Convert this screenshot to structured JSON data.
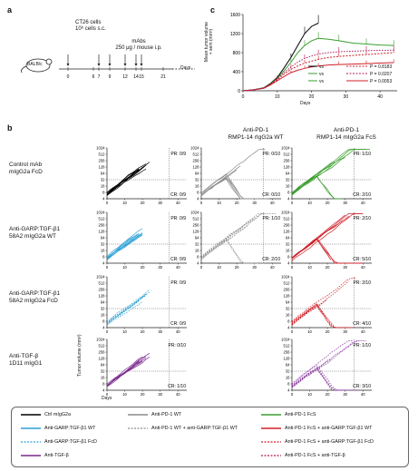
{
  "panel_a": {
    "label": "a",
    "cells_line1": "CT26 cells",
    "cells_line2": "10⁶ cells s.c.",
    "mabs_line1": "mAbs",
    "mabs_line2": "250 μg / mouse i.p.",
    "mouse": "BALB/c",
    "timeline_ticks": [
      "0",
      "6",
      "7",
      "9",
      "12",
      "14",
      "15",
      "21"
    ],
    "timeline_unit": "Days"
  },
  "panel_c": {
    "label": "c",
    "ylabel_line1": "Mean tumor volume",
    "ylabel_line2": "+ sem (mm³)",
    "xlabel": "Days",
    "vs": [
      "vs",
      "vs",
      "vs"
    ],
    "pvalues": [
      "P = 0.8183",
      "P = 0.0207",
      "P = 0.0053"
    ],
    "colors": {
      "black": "#000000",
      "green": "#3a9d2e",
      "red": "#d0202a",
      "darkred": "#b0102a"
    }
  },
  "panel_b": {
    "label": "b",
    "col_headers": [
      {
        "line1": "",
        "line2": ""
      },
      {
        "line1": "Anti-PD-1",
        "line2": "RMP1-14 rIgG2a WT"
      },
      {
        "line1": "Anti-PD-1",
        "line2": "RMP1-14 mIgG2a FcS"
      }
    ],
    "row_labels": [
      {
        "line1": "Control mAb",
        "line2": "mIgG2a FcD",
        "line3": ""
      },
      {
        "line1": "Anti-GARP:TGF-β1",
        "line2": "58A2 mIgG2a WT",
        "line3": ""
      },
      {
        "line1": "Anti-GARP:TGF-β1",
        "line2": "58A2 mIgG2a FcD",
        "line3": ""
      },
      {
        "line1": "Anti-TGF-β",
        "line2": "1D11 mIgG1",
        "line3": ""
      }
    ],
    "yticks": [
      "1024",
      "512",
      "256",
      "128",
      "64",
      "32",
      "16",
      "8",
      "4"
    ],
    "xticks": [
      "0",
      "10",
      "20",
      "30",
      "40"
    ],
    "yaxis_label": "Tumor volume (mm³)",
    "xaxis_label": "Days",
    "cells": [
      [
        {
          "pr": "PR: 0/9",
          "cr": "CR: 0/9"
        },
        {
          "pr": "PR: 0/10",
          "cr": "CR: 0/10"
        },
        {
          "pr": "PR: 1/10",
          "cr": "CR: 2/10"
        }
      ],
      [
        {
          "pr": "PR: 0/9",
          "cr": "CR: 0/9"
        },
        {
          "pr": "PR: 1/10",
          "cr": "CR: 2/10"
        },
        {
          "pr": "PR: 2/10",
          "cr": "CR: 5/10"
        }
      ],
      [
        {
          "pr": "PR: 0/9",
          "cr": "CR: 0/9"
        },
        {
          "pr": "",
          "cr": ""
        },
        {
          "pr": "PR: 2/10",
          "cr": "CR: 4/10"
        }
      ],
      [
        {
          "pr": "PR: 0/10",
          "cr": "CR: 1/10"
        },
        {
          "pr": "",
          "cr": ""
        },
        {
          "pr": "PR: 1/10",
          "cr": "CR: 3/10"
        }
      ]
    ]
  },
  "legend": {
    "items": [
      {
        "label": "Ctrl mIgG2a",
        "color": "#000000",
        "dash": false
      },
      {
        "label": "Anti-GARP:TGF-β1 WT",
        "color": "#2a9fd6",
        "dash": false
      },
      {
        "label": "Anti-GARP:TGF-β1 FcD",
        "color": "#2a9fd6",
        "dash": true
      },
      {
        "label": "Anti-TGF-β",
        "color": "#7b2a8e",
        "dash": false
      },
      {
        "label": "Anti-PD-1 WT",
        "color": "#8c8c8c",
        "dash": false
      },
      {
        "label": "Anti-PD-1 WT + anti-GARP:TGF-β1 WT",
        "color": "#8c8c8c",
        "dash": true
      },
      {
        "label": "Anti-PD-1 FcS",
        "color": "#3a9d2e",
        "dash": false
      },
      {
        "label": "Anti-PD-1 FcS + anti-GARP:TGF-β1 WT",
        "color": "#d0202a",
        "dash": false
      },
      {
        "label": "Anti-PD-1 FcS + anti-GARP:TGF-β1 FcD",
        "color": "#d0202a",
        "dash": true
      },
      {
        "label": "Anti-PD-1 FcS + anti-TGF-β",
        "color": "#b0185a",
        "dash": true
      }
    ]
  },
  "chart_data": {
    "type": "line",
    "title": "",
    "xlabel": "Days",
    "ylabel": "Mean tumor volume + sem (mm³)",
    "xlim": [
      0,
      45
    ],
    "ylim": [
      0,
      1600
    ],
    "yticks": [
      0,
      400,
      800,
      1200,
      1600
    ],
    "xticks": [
      0,
      10,
      20,
      30,
      40
    ],
    "series": [
      {
        "name": "Ctrl mIgG2a",
        "color": "#000000",
        "x": [
          0,
          3,
          6,
          8,
          10,
          12,
          14,
          16,
          18,
          20,
          22
        ],
        "y": [
          0,
          20,
          60,
          150,
          280,
          480,
          700,
          950,
          1200,
          1350,
          1420
        ]
      },
      {
        "name": "Anti-PD-1 FcS",
        "color": "#3a9d2e",
        "x": [
          0,
          3,
          6,
          8,
          10,
          12,
          14,
          16,
          18,
          20,
          22,
          25,
          28,
          32,
          36,
          40,
          44
        ],
        "y": [
          0,
          20,
          55,
          140,
          260,
          420,
          600,
          800,
          950,
          1050,
          1100,
          1080,
          1050,
          1000,
          980,
          960,
          950
        ]
      },
      {
        "name": "Anti-PD-1 FcS + anti-GARP:TGF-β1 WT",
        "color": "#d0202a",
        "x": [
          0,
          3,
          6,
          8,
          10,
          12,
          14,
          16,
          18,
          20,
          22,
          25,
          28,
          32,
          36,
          40,
          44
        ],
        "y": [
          0,
          20,
          50,
          120,
          210,
          300,
          380,
          430,
          470,
          500,
          520,
          540,
          550,
          560,
          570,
          580,
          590
        ]
      },
      {
        "name": "Anti-PD-1 FcS + anti-GARP:TGF-β1 FcD",
        "color": "#d0202a",
        "x": [
          0,
          3,
          6,
          8,
          10,
          12,
          14,
          16,
          18,
          20,
          22,
          25,
          28,
          32,
          36,
          40,
          44
        ],
        "y": [
          0,
          20,
          55,
          130,
          230,
          350,
          450,
          520,
          580,
          620,
          660,
          700,
          720,
          740,
          760,
          780,
          800
        ]
      },
      {
        "name": "Anti-PD-1 FcS + anti-TGF-β",
        "color": "#b0185a",
        "x": [
          0,
          3,
          6,
          8,
          10,
          12,
          14,
          16,
          18,
          20,
          22,
          25,
          28,
          32,
          36,
          40,
          44
        ],
        "y": [
          0,
          20,
          55,
          140,
          250,
          380,
          500,
          600,
          680,
          730,
          770,
          800,
          820,
          830,
          840,
          850,
          850
        ]
      }
    ]
  }
}
